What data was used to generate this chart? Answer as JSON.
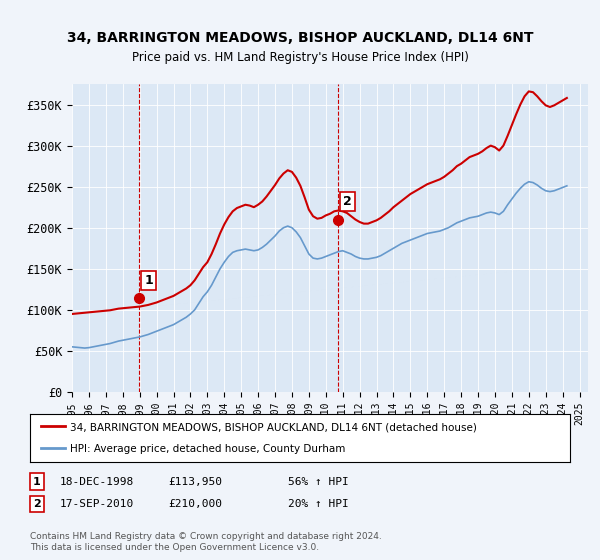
{
  "title": "34, BARRINGTON MEADOWS, BISHOP AUCKLAND, DL14 6NT",
  "subtitle": "Price paid vs. HM Land Registry's House Price Index (HPI)",
  "background_color": "#f0f4fa",
  "plot_bg_color": "#dce8f5",
  "ylim": [
    0,
    375000
  ],
  "yticks": [
    0,
    50000,
    100000,
    150000,
    200000,
    250000,
    300000,
    350000
  ],
  "ytick_labels": [
    "£0",
    "£50K",
    "£100K",
    "£150K",
    "£200K",
    "£250K",
    "£300K",
    "£350K"
  ],
  "sale1_date": 1998.96,
  "sale1_price": 113950,
  "sale1_label": "1",
  "sale2_date": 2010.71,
  "sale2_price": 210000,
  "sale2_label": "2",
  "hpi_color": "#6699cc",
  "price_color": "#cc0000",
  "vline_color": "#cc0000",
  "legend_label_price": "34, BARRINGTON MEADOWS, BISHOP AUCKLAND, DL14 6NT (detached house)",
  "legend_label_hpi": "HPI: Average price, detached house, County Durham",
  "table_rows": [
    {
      "num": "1",
      "date": "18-DEC-1998",
      "price": "£113,950",
      "hpi": "56% ↑ HPI"
    },
    {
      "num": "2",
      "date": "17-SEP-2010",
      "price": "£210,000",
      "hpi": "20% ↑ HPI"
    }
  ],
  "footer": "Contains HM Land Registry data © Crown copyright and database right 2024.\nThis data is licensed under the Open Government Licence v3.0.",
  "hpi_data": {
    "years": [
      1995.0,
      1995.25,
      1995.5,
      1995.75,
      1996.0,
      1996.25,
      1996.5,
      1996.75,
      1997.0,
      1997.25,
      1997.5,
      1997.75,
      1998.0,
      1998.25,
      1998.5,
      1998.75,
      1999.0,
      1999.25,
      1999.5,
      1999.75,
      2000.0,
      2000.25,
      2000.5,
      2000.75,
      2001.0,
      2001.25,
      2001.5,
      2001.75,
      2002.0,
      2002.25,
      2002.5,
      2002.75,
      2003.0,
      2003.25,
      2003.5,
      2003.75,
      2004.0,
      2004.25,
      2004.5,
      2004.75,
      2005.0,
      2005.25,
      2005.5,
      2005.75,
      2006.0,
      2006.25,
      2006.5,
      2006.75,
      2007.0,
      2007.25,
      2007.5,
      2007.75,
      2008.0,
      2008.25,
      2008.5,
      2008.75,
      2009.0,
      2009.25,
      2009.5,
      2009.75,
      2010.0,
      2010.25,
      2010.5,
      2010.75,
      2011.0,
      2011.25,
      2011.5,
      2011.75,
      2012.0,
      2012.25,
      2012.5,
      2012.75,
      2013.0,
      2013.25,
      2013.5,
      2013.75,
      2014.0,
      2014.25,
      2014.5,
      2014.75,
      2015.0,
      2015.25,
      2015.5,
      2015.75,
      2016.0,
      2016.25,
      2016.5,
      2016.75,
      2017.0,
      2017.25,
      2017.5,
      2017.75,
      2018.0,
      2018.25,
      2018.5,
      2018.75,
      2019.0,
      2019.25,
      2019.5,
      2019.75,
      2020.0,
      2020.25,
      2020.5,
      2020.75,
      2021.0,
      2021.25,
      2021.5,
      2021.75,
      2022.0,
      2022.25,
      2022.5,
      2022.75,
      2023.0,
      2023.25,
      2023.5,
      2023.75,
      2024.0,
      2024.25
    ],
    "values": [
      55000,
      54500,
      54000,
      53500,
      54000,
      55000,
      56000,
      57000,
      58000,
      59000,
      60500,
      62000,
      63000,
      64000,
      65000,
      66000,
      67000,
      68500,
      70000,
      72000,
      74000,
      76000,
      78000,
      80000,
      82000,
      85000,
      88000,
      91000,
      95000,
      100000,
      108000,
      116000,
      122000,
      130000,
      140000,
      150000,
      158000,
      165000,
      170000,
      172000,
      173000,
      174000,
      173000,
      172000,
      173000,
      176000,
      180000,
      185000,
      190000,
      196000,
      200000,
      202000,
      200000,
      195000,
      188000,
      178000,
      168000,
      163000,
      162000,
      163000,
      165000,
      167000,
      169000,
      171000,
      172000,
      170000,
      168000,
      165000,
      163000,
      162000,
      162000,
      163000,
      164000,
      166000,
      169000,
      172000,
      175000,
      178000,
      181000,
      183000,
      185000,
      187000,
      189000,
      191000,
      193000,
      194000,
      195000,
      196000,
      198000,
      200000,
      203000,
      206000,
      208000,
      210000,
      212000,
      213000,
      214000,
      216000,
      218000,
      219000,
      218000,
      216000,
      220000,
      228000,
      235000,
      242000,
      248000,
      253000,
      256000,
      255000,
      252000,
      248000,
      245000,
      244000,
      245000,
      247000,
      249000,
      251000
    ]
  },
  "price_data": {
    "years": [
      1995.0,
      1995.25,
      1995.5,
      1995.75,
      1996.0,
      1996.25,
      1996.5,
      1996.75,
      1997.0,
      1997.25,
      1997.5,
      1997.75,
      1998.0,
      1998.25,
      1998.5,
      1998.75,
      1999.0,
      1999.25,
      1999.5,
      1999.75,
      2000.0,
      2000.25,
      2000.5,
      2000.75,
      2001.0,
      2001.25,
      2001.5,
      2001.75,
      2002.0,
      2002.25,
      2002.5,
      2002.75,
      2003.0,
      2003.25,
      2003.5,
      2003.75,
      2004.0,
      2004.25,
      2004.5,
      2004.75,
      2005.0,
      2005.25,
      2005.5,
      2005.75,
      2006.0,
      2006.25,
      2006.5,
      2006.75,
      2007.0,
      2007.25,
      2007.5,
      2007.75,
      2008.0,
      2008.25,
      2008.5,
      2008.75,
      2009.0,
      2009.25,
      2009.5,
      2009.75,
      2010.0,
      2010.25,
      2010.5,
      2010.75,
      2011.0,
      2011.25,
      2011.5,
      2011.75,
      2012.0,
      2012.25,
      2012.5,
      2012.75,
      2013.0,
      2013.25,
      2013.5,
      2013.75,
      2014.0,
      2014.25,
      2014.5,
      2014.75,
      2015.0,
      2015.25,
      2015.5,
      2015.75,
      2016.0,
      2016.25,
      2016.5,
      2016.75,
      2017.0,
      2017.25,
      2017.5,
      2017.75,
      2018.0,
      2018.25,
      2018.5,
      2018.75,
      2019.0,
      2019.25,
      2019.5,
      2019.75,
      2020.0,
      2020.25,
      2020.5,
      2020.75,
      2021.0,
      2021.25,
      2021.5,
      2021.75,
      2022.0,
      2022.25,
      2022.5,
      2022.75,
      2023.0,
      2023.25,
      2023.5,
      2023.75,
      2024.0,
      2024.25
    ],
    "values": [
      95000,
      95500,
      96000,
      96500,
      97000,
      97500,
      98000,
      98500,
      99000,
      99500,
      100500,
      101500,
      102000,
      102500,
      103000,
      103500,
      104000,
      105000,
      106000,
      107500,
      109000,
      111000,
      113000,
      115000,
      117000,
      120000,
      123000,
      126000,
      130000,
      136000,
      144000,
      152000,
      158000,
      168000,
      180000,
      193000,
      204000,
      213000,
      220000,
      224000,
      226000,
      228000,
      227000,
      225000,
      228000,
      232000,
      238000,
      245000,
      252000,
      260000,
      266000,
      270000,
      268000,
      261000,
      251000,
      237000,
      222000,
      214000,
      211000,
      212000,
      215000,
      217000,
      220000,
      221000,
      220000,
      218000,
      214000,
      210000,
      207000,
      205000,
      205000,
      207000,
      209000,
      212000,
      216000,
      220000,
      225000,
      229000,
      233000,
      237000,
      241000,
      244000,
      247000,
      250000,
      253000,
      255000,
      257000,
      259000,
      262000,
      266000,
      270000,
      275000,
      278000,
      282000,
      286000,
      288000,
      290000,
      293000,
      297000,
      300000,
      298000,
      294000,
      300000,
      312000,
      325000,
      338000,
      350000,
      360000,
      366000,
      365000,
      360000,
      354000,
      349000,
      347000,
      349000,
      352000,
      355000,
      358000
    ]
  }
}
